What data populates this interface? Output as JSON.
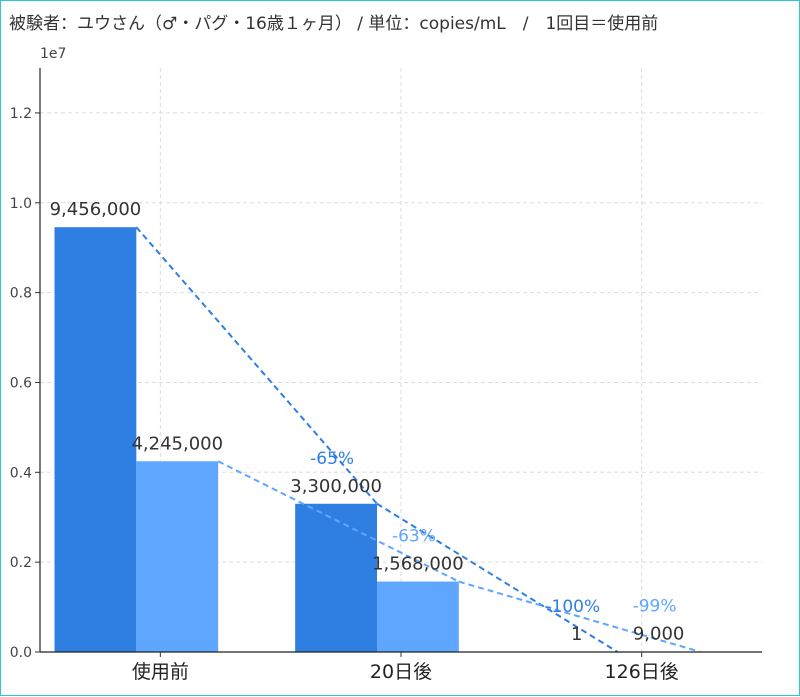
{
  "chart_data": {
    "type": "bar",
    "title": "被験者：ユウさん（♂・パグ・16歳１ヶ月） / 単位：copies/mL　/　1回目＝使用前",
    "categories": [
      "使用前",
      "20日後",
      "126日後"
    ],
    "series": [
      {
        "values": [
          9456000,
          3300000,
          1
        ],
        "color": "#2f7fe3",
        "value_labels": [
          "9,456,000",
          "3,300,000",
          "1"
        ],
        "change_labels": [
          "",
          "-65%",
          "-100%"
        ]
      },
      {
        "values": [
          4245000,
          1568000,
          9000
        ],
        "color": "#5ea6ff",
        "value_labels": [
          "4,245,000",
          "1,568,000",
          "9,000"
        ],
        "change_labels": [
          "",
          "-63%",
          "-99%"
        ]
      }
    ],
    "ylim": [
      0,
      13000000
    ],
    "yticks": [
      "0.0",
      "0.2",
      "0.4",
      "0.6",
      "0.8",
      "1.0",
      "1.2"
    ],
    "ytick_values": [
      0,
      2000000,
      4000000,
      6000000,
      8000000,
      10000000,
      12000000
    ],
    "y_offset_label": "1e7",
    "grid": true,
    "trend_lines": true
  }
}
